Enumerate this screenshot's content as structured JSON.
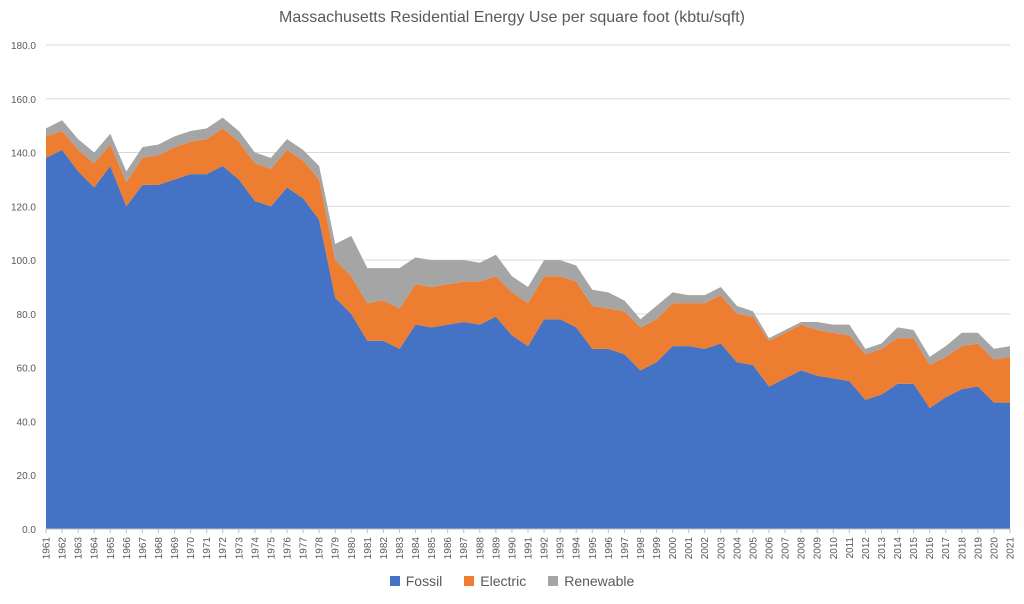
{
  "chart_data": {
    "type": "area",
    "stacked": true,
    "title": "Massachusetts Residential Energy Use per square foot (kbtu/sqft)",
    "xlabel": "",
    "ylabel": "",
    "ylim": [
      0,
      180
    ],
    "yticks": [
      "0.0",
      "20.0",
      "40.0",
      "60.0",
      "80.0",
      "100.0",
      "120.0",
      "140.0",
      "160.0",
      "180.0"
    ],
    "grid": true,
    "legend_position": "bottom",
    "categories": [
      "1961",
      "1962",
      "1963",
      "1964",
      "1965",
      "1966",
      "1967",
      "1968",
      "1969",
      "1970",
      "1971",
      "1972",
      "1973",
      "1974",
      "1975",
      "1976",
      "1977",
      "1978",
      "1979",
      "1980",
      "1981",
      "1982",
      "1983",
      "1984",
      "1985",
      "1986",
      "1987",
      "1988",
      "1989",
      "1990",
      "1991",
      "1992",
      "1993",
      "1994",
      "1995",
      "1996",
      "1997",
      "1998",
      "1999",
      "2000",
      "2001",
      "2002",
      "2003",
      "2004",
      "2005",
      "2006",
      "2007",
      "2008",
      "2009",
      "2010",
      "2011",
      "2012",
      "2013",
      "2014",
      "2015",
      "2016",
      "2017",
      "2018",
      "2019",
      "2020",
      "2021"
    ],
    "series": [
      {
        "name": "Fossil",
        "color": "#4472C4",
        "values": [
          138,
          141,
          133,
          127,
          135,
          120,
          128,
          128,
          130,
          132,
          132,
          135,
          130,
          122,
          120,
          127,
          123,
          115,
          86,
          80,
          70,
          70,
          67,
          76,
          75,
          76,
          77,
          76,
          79,
          72,
          68,
          78,
          78,
          75,
          67,
          67,
          65,
          59,
          62,
          68,
          68,
          67,
          69,
          62,
          61,
          53,
          56,
          59,
          57,
          56,
          55,
          48,
          50,
          54,
          54,
          45,
          49,
          52,
          53,
          47,
          47
        ]
      },
      {
        "name": "Electric",
        "color": "#ED7D31",
        "values": [
          8,
          7,
          8,
          9,
          8,
          9,
          10,
          11,
          12,
          12,
          13,
          14,
          14,
          14,
          14,
          14,
          14,
          15,
          14,
          14,
          14,
          15,
          15,
          15,
          15,
          15,
          15,
          16,
          15,
          16,
          16,
          16,
          16,
          17,
          16,
          15,
          16,
          16,
          16,
          16,
          16,
          17,
          18,
          18,
          18,
          17,
          17,
          17,
          17,
          17,
          17,
          17,
          17,
          17,
          17,
          16,
          15,
          16,
          16,
          16,
          17
        ]
      },
      {
        "name": "Renewable",
        "color": "#A5A5A5",
        "values": [
          3,
          4,
          4,
          4,
          4,
          4,
          4,
          4,
          4,
          4,
          4,
          4,
          4,
          4,
          4,
          4,
          4,
          5,
          6,
          15,
          13,
          12,
          15,
          10,
          10,
          9,
          8,
          7,
          8,
          6,
          6,
          6,
          6,
          6,
          6,
          6,
          4,
          3,
          5,
          4,
          3,
          3,
          3,
          3,
          2,
          1,
          1,
          1,
          3,
          3,
          4,
          2,
          2,
          4,
          3,
          3,
          4,
          5,
          4,
          4,
          4
        ]
      }
    ]
  }
}
